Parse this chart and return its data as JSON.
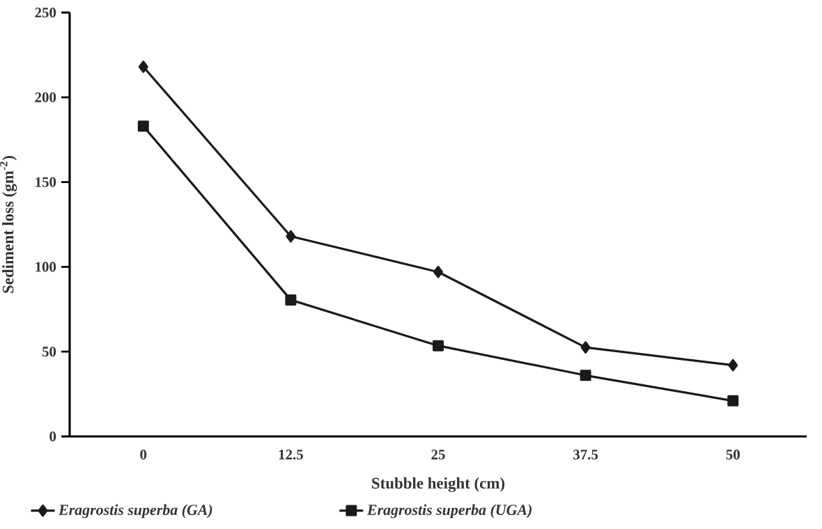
{
  "chart_data": {
    "type": "line",
    "xlabel": "Stubble height (cm)",
    "ylabel": "Sediment loss (gm$^{-2}$)",
    "categories": [
      "0",
      "12.5",
      "25",
      "37.5",
      "50"
    ],
    "series": [
      {
        "name": "Eragrostis superba (GA)",
        "color": "#1a1a1a",
        "marker": "diamond",
        "values": [
          218,
          118,
          97,
          52.5,
          42
        ]
      },
      {
        "name": "Eragrostis superba (UGA)",
        "color": "#1a1a1a",
        "marker": "square",
        "values": [
          183,
          80.5,
          53.5,
          36,
          21
        ]
      }
    ],
    "ylim": [
      0,
      250
    ],
    "yticks": [
      0,
      50,
      100,
      150,
      200,
      250
    ],
    "legend": "bottom"
  }
}
